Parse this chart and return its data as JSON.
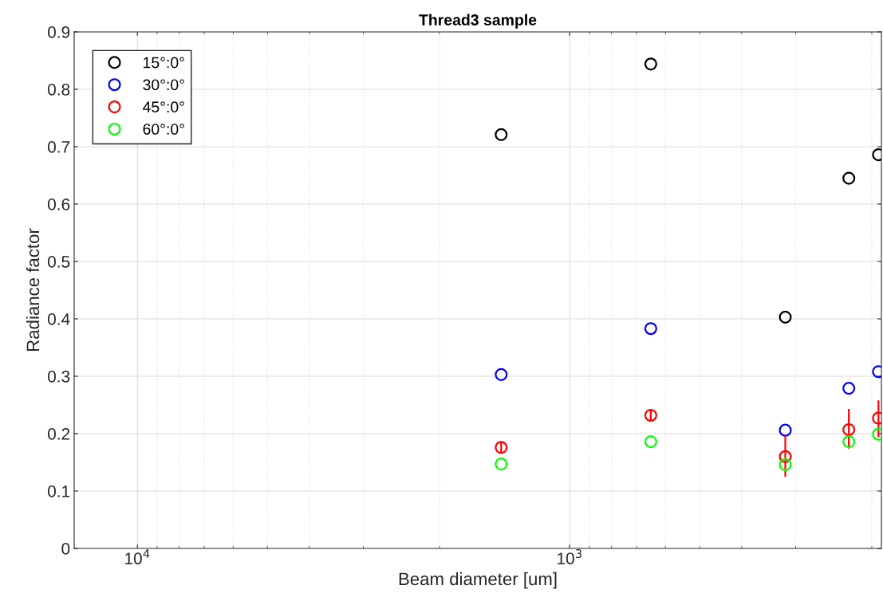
{
  "chart_data": {
    "type": "scatter",
    "title": "Thread3 sample",
    "xlabel": "Beam diameter [um]",
    "ylabel": "Radiance factor",
    "log": "x",
    "xlim": [
      14000,
      190
    ],
    "xticks": [
      {
        "value": 10000,
        "label": "10$^{4}$"
      },
      {
        "value": 1000,
        "label": "10$^{3}$"
      }
    ],
    "ylim": [
      0,
      0.9
    ],
    "yticks": [
      0,
      0.1,
      0.2,
      0.3,
      0.4,
      0.5,
      0.6,
      0.7,
      0.8,
      0.9
    ],
    "grid": true,
    "legend": "top left",
    "marker": "circle",
    "x": [
      1440,
      649,
      317,
      226,
      193
    ],
    "series": [
      {
        "name": "15°:0°",
        "color": "#000000",
        "values": [
          0.721,
          0.844,
          0.403,
          0.645,
          0.686
        ]
      },
      {
        "name": "30°:0°",
        "color": "#0000ff",
        "values": [
          0.303,
          0.383,
          0.206,
          0.279,
          0.308
        ]
      },
      {
        "name": "45°:0°",
        "color": "#ff0000",
        "values": [
          0.176,
          0.232,
          0.16,
          0.207,
          0.227
        ],
        "errors": [
          0.01,
          0.01,
          [
            0.125,
            0.196
          ],
          [
            0.174,
            0.243
          ],
          [
            0.194,
            0.258
          ]
        ]
      },
      {
        "name": "60°:0°",
        "color": "#00ff00",
        "values": [
          0.147,
          0.186,
          0.146,
          0.186,
          0.199
        ]
      }
    ]
  }
}
